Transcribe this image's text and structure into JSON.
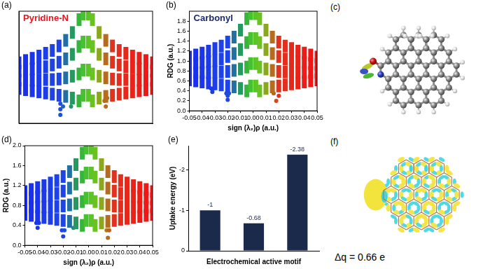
{
  "chart_data": [
    {
      "type": "scatter",
      "title": "(a)",
      "annotations": [
        {
          "text": "Pyridine-N",
          "color": "#e8141e"
        }
      ],
      "xlim": [
        -0.05,
        0.05
      ],
      "ylim": [
        0,
        2
      ],
      "tick_labels": false,
      "grid": false,
      "series": [
        {
          "x": [
            -0.05,
            -0.05,
            -0.05,
            -0.05,
            -0.045,
            -0.045,
            -0.045,
            -0.045,
            -0.04,
            -0.04,
            -0.04,
            -0.04,
            -0.035,
            -0.035,
            -0.035,
            -0.035,
            -0.03,
            -0.03,
            -0.03,
            -0.03,
            -0.025,
            -0.025,
            -0.025,
            -0.025,
            -0.02,
            -0.02,
            -0.02,
            -0.02,
            -0.015,
            -0.015,
            -0.015,
            -0.015,
            -0.01,
            -0.01,
            -0.01,
            -0.01,
            -0.005,
            -0.005,
            -0.005,
            -0.005,
            -0.002,
            -0.002,
            -0.002,
            -0.002,
            0.002,
            0.002,
            0.002,
            0.002,
            0.005,
            0.005,
            0.005,
            0.005,
            0.01,
            0.01,
            0.01,
            0.01,
            0.015,
            0.015,
            0.015,
            0.015,
            0.02,
            0.02,
            0.02,
            0.02,
            0.025,
            0.025,
            0.025,
            0.025,
            0.03,
            0.03,
            0.03,
            0.03,
            0.035,
            0.035,
            0.035,
            0.035,
            0.04,
            0.04,
            0.04,
            0.04,
            0.045,
            0.045,
            0.045,
            0.045,
            0.05,
            0.05,
            0.05,
            0.05
          ],
          "values": [
            0.62,
            0.77,
            0.93,
            1.08,
            0.6,
            0.77,
            0.95,
            1.12,
            0.58,
            0.77,
            0.97,
            1.16,
            0.56,
            0.77,
            0.99,
            1.2,
            0.54,
            0.78,
            1.01,
            1.25,
            0.52,
            0.78,
            1.04,
            1.3,
            0.5,
            0.79,
            1.09,
            1.38,
            0.48,
            0.81,
            1.15,
            1.48,
            0.45,
            0.84,
            1.23,
            1.62,
            0.4,
            0.88,
            1.37,
            1.85,
            0.5,
            0.95,
            1.45,
            1.95,
            0.5,
            0.95,
            1.45,
            1.95,
            0.4,
            0.88,
            1.37,
            1.85,
            0.45,
            0.84,
            1.23,
            1.62,
            0.48,
            0.81,
            1.15,
            1.48,
            0.5,
            0.79,
            1.09,
            1.38,
            0.52,
            0.78,
            1.04,
            1.3,
            0.54,
            0.78,
            1.01,
            1.25,
            0.56,
            0.77,
            0.99,
            1.2,
            0.58,
            0.77,
            0.97,
            1.16,
            0.6,
            0.77,
            0.95,
            1.12,
            0.62,
            0.77,
            0.93,
            1.08
          ]
        },
        {
          "x": [
            -0.019,
            -0.019,
            -0.019,
            -0.017,
            -0.011,
            0.014,
            0.015,
            0.016
          ],
          "values": [
            0.15,
            0.25,
            0.35,
            0.3,
            0.3,
            0.4,
            0.3,
            0.45
          ]
        }
      ]
    },
    {
      "type": "scatter",
      "title": "(b)",
      "annotations": [
        {
          "text": "Carbonyl",
          "color": "#1c2a6e"
        }
      ],
      "xlabel": "sign (λ₂)ρ (a.u.)",
      "ylabel": "RDG (a.u.)",
      "xlim": [
        -0.05,
        0.05
      ],
      "ylim": [
        0,
        2
      ],
      "xticks": [
        -0.05,
        -0.04,
        -0.03,
        -0.02,
        -0.01,
        {
          "value": 0,
          "label": "0.00"
        },
        0.01,
        0.02,
        0.03,
        0.04,
        0.05
      ],
      "yticks": [
        {
          "value": 0,
          "label": "0.0"
        },
        0.2,
        0.4,
        0.6,
        0.8,
        {
          "value": 1,
          "label": "1.0"
        },
        1.2,
        1.4,
        1.6,
        1.8
      ],
      "grid": false,
      "series": [
        {
          "x": [
            -0.05,
            -0.05,
            -0.05,
            -0.05,
            -0.045,
            -0.045,
            -0.045,
            -0.045,
            -0.04,
            -0.04,
            -0.04,
            -0.04,
            -0.035,
            -0.035,
            -0.035,
            -0.035,
            -0.03,
            -0.03,
            -0.03,
            -0.03,
            -0.025,
            -0.025,
            -0.025,
            -0.025,
            -0.02,
            -0.02,
            -0.02,
            -0.02,
            -0.015,
            -0.015,
            -0.015,
            -0.015,
            -0.01,
            -0.01,
            -0.01,
            -0.01,
            -0.005,
            -0.005,
            -0.005,
            -0.005,
            -0.002,
            -0.002,
            -0.002,
            -0.002,
            0.002,
            0.002,
            0.002,
            0.002,
            0.005,
            0.005,
            0.005,
            0.005,
            0.01,
            0.01,
            0.01,
            0.01,
            0.015,
            0.015,
            0.015,
            0.015,
            0.02,
            0.02,
            0.02,
            0.02,
            0.025,
            0.025,
            0.025,
            0.025,
            0.03,
            0.03,
            0.03,
            0.03,
            0.035,
            0.035,
            0.035,
            0.035,
            0.04,
            0.04,
            0.04,
            0.04,
            0.045,
            0.045,
            0.045,
            0.045,
            0.05,
            0.05,
            0.05,
            0.05
          ],
          "values": [
            0.62,
            0.77,
            0.93,
            1.08,
            0.6,
            0.77,
            0.95,
            1.12,
            0.58,
            0.77,
            0.97,
            1.16,
            0.56,
            0.77,
            0.99,
            1.2,
            0.54,
            0.78,
            1.01,
            1.25,
            0.52,
            0.78,
            1.04,
            1.3,
            0.5,
            0.79,
            1.09,
            1.38,
            0.48,
            0.81,
            1.15,
            1.48,
            0.45,
            0.84,
            1.23,
            1.62,
            0.4,
            0.88,
            1.37,
            1.85,
            0.5,
            0.95,
            1.45,
            1.95,
            0.5,
            0.95,
            1.45,
            1.95,
            0.4,
            0.88,
            1.37,
            1.85,
            0.45,
            0.84,
            1.23,
            1.62,
            0.48,
            0.81,
            1.15,
            1.48,
            0.5,
            0.79,
            1.09,
            1.38,
            0.52,
            0.78,
            1.04,
            1.3,
            0.54,
            0.78,
            1.01,
            1.25,
            0.56,
            0.77,
            0.99,
            1.2,
            0.58,
            0.77,
            0.97,
            1.16,
            0.6,
            0.77,
            0.95,
            1.12,
            0.62,
            0.77,
            0.93,
            1.08
          ]
        },
        {
          "x": [
            -0.033,
            -0.032,
            -0.031,
            -0.021,
            -0.02,
            -0.02,
            -0.019,
            0.016,
            0.018,
            0.02
          ],
          "values": [
            0.45,
            0.38,
            0.45,
            0.35,
            0.22,
            0.3,
            0.35,
            0.35,
            0.2,
            0.3
          ]
        }
      ]
    },
    {
      "type": "scatter",
      "title": "(d)",
      "xlabel": "sign (λ₂)ρ (a.u.)",
      "ylabel": "RDG (a.u.)",
      "xlim": [
        -0.05,
        0.05
      ],
      "ylim": [
        0,
        2
      ],
      "xticks": [
        -0.05,
        -0.04,
        -0.03,
        -0.02,
        -0.01,
        {
          "value": 0,
          "label": "0.00"
        },
        0.01,
        0.02,
        0.03,
        0.04,
        0.05
      ],
      "yticks": [
        {
          "value": 0,
          "label": "0.0"
        },
        0.4,
        0.8,
        1.2,
        1.6,
        {
          "value": 2,
          "label": "2.0"
        }
      ],
      "grid": false,
      "series": [
        {
          "x": [
            -0.05,
            -0.05,
            -0.05,
            -0.05,
            -0.045,
            -0.045,
            -0.045,
            -0.045,
            -0.04,
            -0.04,
            -0.04,
            -0.04,
            -0.035,
            -0.035,
            -0.035,
            -0.035,
            -0.03,
            -0.03,
            -0.03,
            -0.03,
            -0.025,
            -0.025,
            -0.025,
            -0.025,
            -0.02,
            -0.02,
            -0.02,
            -0.02,
            -0.015,
            -0.015,
            -0.015,
            -0.015,
            -0.01,
            -0.01,
            -0.01,
            -0.01,
            -0.005,
            -0.005,
            -0.005,
            -0.005,
            -0.002,
            -0.002,
            -0.002,
            -0.002,
            0.002,
            0.002,
            0.002,
            0.002,
            0.005,
            0.005,
            0.005,
            0.005,
            0.01,
            0.01,
            0.01,
            0.01,
            0.015,
            0.015,
            0.015,
            0.015,
            0.02,
            0.02,
            0.02,
            0.02,
            0.025,
            0.025,
            0.025,
            0.025,
            0.03,
            0.03,
            0.03,
            0.03,
            0.035,
            0.035,
            0.035,
            0.035,
            0.04,
            0.04,
            0.04,
            0.04,
            0.045,
            0.045,
            0.045,
            0.045,
            0.05,
            0.05,
            0.05,
            0.05
          ],
          "values": [
            0.62,
            0.77,
            0.93,
            1.08,
            0.6,
            0.77,
            0.95,
            1.12,
            0.58,
            0.77,
            0.97,
            1.16,
            0.56,
            0.77,
            0.99,
            1.2,
            0.54,
            0.78,
            1.01,
            1.25,
            0.52,
            0.78,
            1.04,
            1.3,
            0.5,
            0.79,
            1.09,
            1.38,
            0.48,
            0.81,
            1.15,
            1.48,
            0.45,
            0.84,
            1.23,
            1.62,
            0.4,
            0.88,
            1.37,
            1.85,
            0.5,
            0.95,
            1.45,
            1.95,
            0.5,
            0.95,
            1.45,
            1.95,
            0.4,
            0.88,
            1.37,
            1.85,
            0.45,
            0.84,
            1.23,
            1.62,
            0.48,
            0.81,
            1.15,
            1.48,
            0.5,
            0.79,
            1.09,
            1.38,
            0.52,
            0.78,
            1.04,
            1.3,
            0.54,
            0.78,
            1.01,
            1.25,
            0.56,
            0.77,
            0.99,
            1.2,
            0.58,
            0.77,
            0.97,
            1.16,
            0.6,
            0.77,
            0.95,
            1.12,
            0.62,
            0.77,
            0.93,
            1.08
          ]
        },
        {
          "x": [
            -0.041,
            -0.04,
            -0.039,
            -0.021,
            -0.02,
            -0.019,
            -0.012,
            0.014,
            0.015,
            0.016
          ],
          "values": [
            0.45,
            0.35,
            0.45,
            0.3,
            0.18,
            0.3,
            0.35,
            0.3,
            0.15,
            0.3
          ]
        }
      ]
    },
    {
      "type": "bar",
      "title": "(e)",
      "xlabel": "Electrochemical active motif",
      "ylabel": "Uptake energy (eV)",
      "categories": [
        null,
        null,
        null
      ],
      "values": [
        -1,
        -0.68,
        -2.38
      ],
      "color": "#1b2a4b",
      "ylim": [
        0,
        -2.6
      ],
      "yticks": [
        0,
        -1,
        -2
      ],
      "data_labels": true,
      "tick_labels": "y",
      "grid": false
    }
  ],
  "panels": {
    "c": {
      "label": "(c)"
    },
    "f": {
      "label": "(f)",
      "annotation": "Δq = 0.66 e"
    }
  }
}
